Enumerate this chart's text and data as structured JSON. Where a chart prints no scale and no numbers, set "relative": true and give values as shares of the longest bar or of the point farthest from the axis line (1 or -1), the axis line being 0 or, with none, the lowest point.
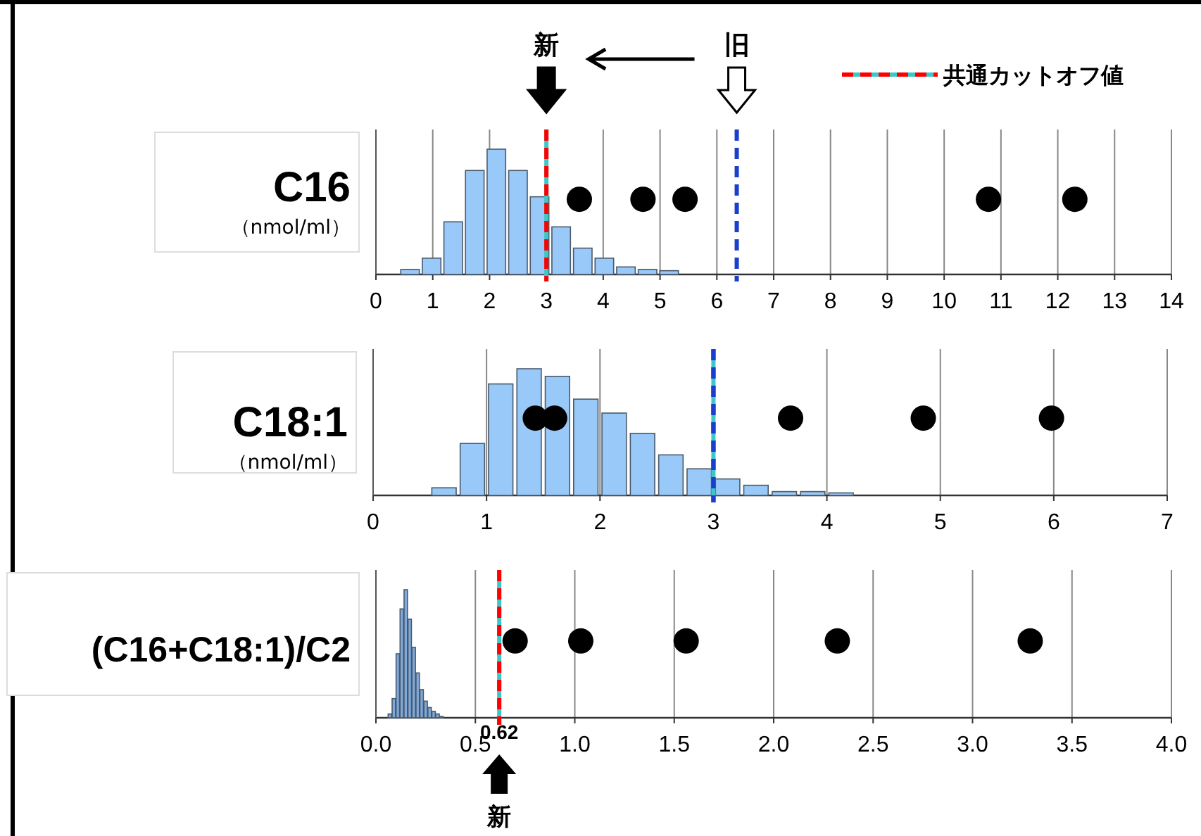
{
  "chart_data": [
    {
      "type": "bar",
      "title": "C16",
      "subtitle": "（nmol/ml）",
      "relative": true,
      "xlim": [
        0,
        14
      ],
      "xticks": [
        0,
        1,
        2,
        3,
        4,
        5,
        6,
        7,
        8,
        9,
        10,
        11,
        12,
        13,
        14
      ],
      "grid": "x",
      "tick_labels": "x",
      "color": "#99c9f8",
      "x": [
        0.6,
        0.98,
        1.36,
        1.74,
        2.12,
        2.5,
        2.88,
        3.26,
        3.64,
        4.02,
        4.4,
        4.78,
        5.16
      ],
      "values": [
        0.04,
        0.13,
        0.42,
        0.83,
        1,
        0.83,
        0.62,
        0.38,
        0.21,
        0.13,
        0.06,
        0.04,
        0.03
      ],
      "series": [
        {
          "type": "scatter",
          "color": "#000000",
          "marker": "circle",
          "x": [
            3.58,
            4.7,
            5.44,
            10.78,
            12.3
          ],
          "values": [
            0.6,
            0.6,
            0.6,
            0.6,
            0.6
          ]
        }
      ],
      "ref_lines": [
        {
          "axis": "x",
          "value": 3,
          "color": "#3cc8c8",
          "line_style": "solid"
        },
        {
          "axis": "x",
          "value": 3,
          "label": "共通カットオフ値",
          "color": "#ff0000",
          "line_style": "dashed"
        },
        {
          "axis": "x",
          "value": 6.35,
          "color": "#1a3fcc",
          "line_style": "dashed"
        }
      ],
      "annotations": [
        "新",
        "旧"
      ]
    },
    {
      "type": "bar",
      "title": "C18:1",
      "subtitle": "（nmol/ml）",
      "relative": true,
      "xlim": [
        0,
        7
      ],
      "xticks": [
        0,
        1,
        2,
        3,
        4,
        5,
        6,
        7
      ],
      "grid": "x",
      "tick_labels": "x",
      "color": "#99c9f8",
      "x": [
        0.625,
        0.875,
        1.125,
        1.375,
        1.625,
        1.875,
        2.125,
        2.375,
        2.625,
        2.875,
        3.125,
        3.375,
        3.625,
        3.875,
        4.125
      ],
      "values": [
        0.06,
        0.41,
        0.88,
        1,
        0.94,
        0.76,
        0.65,
        0.49,
        0.32,
        0.21,
        0.13,
        0.08,
        0.03,
        0.03,
        0.02
      ],
      "series": [
        {
          "type": "scatter",
          "color": "#000000",
          "marker": "circle",
          "x": [
            1.43,
            1.6,
            3.68,
            4.85,
            5.98
          ],
          "values": [
            0.61,
            0.61,
            0.61,
            0.61,
            0.61
          ]
        }
      ],
      "ref_lines": [
        {
          "axis": "x",
          "value": 3,
          "color": "#3cc8c8",
          "line_style": "solid"
        },
        {
          "axis": "x",
          "value": 3,
          "color": "#ff0000",
          "line_style": "dashed"
        },
        {
          "axis": "x",
          "value": 3,
          "color": "#1a3fcc",
          "line_style": "dashed"
        }
      ]
    },
    {
      "type": "bar",
      "title": "(C16+C18:1)/C2",
      "relative": true,
      "xlim": [
        0,
        4
      ],
      "xticks": [
        {
          "value": 0,
          "label": "0.0"
        },
        0.5,
        {
          "value": 1,
          "label": "1.0"
        },
        1.5,
        {
          "value": 2,
          "label": "2.0"
        },
        2.5,
        {
          "value": 3,
          "label": "3.0"
        },
        3.5,
        {
          "value": 4,
          "label": "4.0"
        }
      ],
      "grid": "x",
      "tick_labels": "x",
      "color": "#7fa9dc",
      "x": [
        0.07,
        0.09,
        0.11,
        0.13,
        0.15,
        0.17,
        0.19,
        0.21,
        0.23,
        0.25,
        0.27,
        0.29,
        0.31,
        0.33
      ],
      "values": [
        0.03,
        0.15,
        0.5,
        0.85,
        1,
        0.77,
        0.55,
        0.35,
        0.22,
        0.13,
        0.08,
        0.05,
        0.03,
        0.01
      ],
      "series": [
        {
          "type": "scatter",
          "color": "#000000",
          "marker": "circle",
          "x": [
            0.7,
            1.03,
            1.56,
            2.32,
            3.29
          ],
          "values": [
            0.6,
            0.6,
            0.6,
            0.6,
            0.6
          ]
        }
      ],
      "ref_lines": [
        {
          "axis": "x",
          "value": 0.62,
          "color": "#3cc8c8",
          "line_style": "solid"
        },
        {
          "axis": "x",
          "value": 0.62,
          "color": "#ff0000",
          "line_style": "dashed"
        }
      ],
      "annotations": [
        "0.62",
        "新"
      ]
    }
  ]
}
